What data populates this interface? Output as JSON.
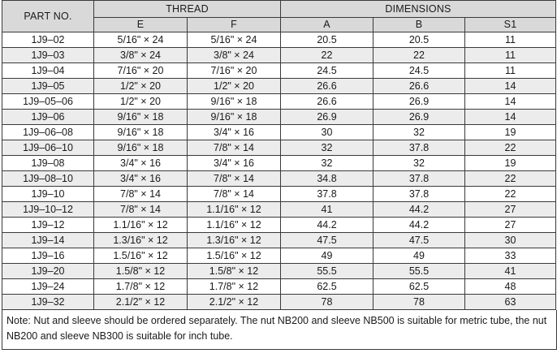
{
  "header": {
    "part_no": "PART NO.",
    "thread": "THREAD",
    "dimensions": "DIMENSIONS",
    "sub": [
      "E",
      "F",
      "A",
      "B",
      "S1"
    ]
  },
  "rows": [
    [
      "1J9–02",
      "5/16\" × 24",
      "5/16\" × 24",
      "20.5",
      "20.5",
      "11"
    ],
    [
      "1J9–03",
      "3/8\" × 24",
      "3/8\" × 24",
      "22",
      "22",
      "11"
    ],
    [
      "1J9–04",
      "7/16\" × 20",
      "7/16\" × 20",
      "24.5",
      "24.5",
      "11"
    ],
    [
      "1J9–05",
      "1/2\" × 20",
      "1/2\" × 20",
      "26.6",
      "26.6",
      "14"
    ],
    [
      "1J9–05–06",
      "1/2\" × 20",
      "9/16\" × 18",
      "26.6",
      "26.9",
      "14"
    ],
    [
      "1J9–06",
      "9/16\" × 18",
      "9/16\" × 18",
      "26.9",
      "26.9",
      "14"
    ],
    [
      "1J9–06–08",
      "9/16\" × 18",
      "3/4\" × 16",
      "30",
      "32",
      "19"
    ],
    [
      "1J9–06–10",
      "9/16\" × 18",
      "7/8\" × 14",
      "32",
      "37.8",
      "22"
    ],
    [
      "1J9–08",
      "3/4\" × 16",
      "3/4\" × 16",
      "32",
      "32",
      "19"
    ],
    [
      "1J9–08–10",
      "3/4\" × 16",
      "7/8\" × 14",
      "34.8",
      "37.8",
      "22"
    ],
    [
      "1J9–10",
      "7/8\" × 14",
      "7/8\" × 14",
      "37.8",
      "37.8",
      "22"
    ],
    [
      "1J9–10–12",
      "7/8\" × 14",
      "1.1/16\" × 12",
      "41",
      "44.2",
      "27"
    ],
    [
      "1J9–12",
      "1.1/16\" × 12",
      "1.1/16\" × 12",
      "44.2",
      "44.2",
      "27"
    ],
    [
      "1J9–14",
      "1.3/16\" × 12",
      "1.3/16\" × 12",
      "47.5",
      "47.5",
      "30"
    ],
    [
      "1J9–16",
      "1.5/16\" × 12",
      "1.5/16\" × 12",
      "49",
      "49",
      "33"
    ],
    [
      "1J9–20",
      "1.5/8\" × 12",
      "1.5/8\" × 12",
      "55.5",
      "55.5",
      "41"
    ],
    [
      "1J9–24",
      "1.7/8\" × 12",
      "1.7/8\" × 12",
      "62.5",
      "62.5",
      "48"
    ],
    [
      "1J9–32",
      "2.1/2\" × 12",
      "2.1/2\" × 12",
      "78",
      "78",
      "63"
    ]
  ],
  "note": "Note: Nut and sleeve should be ordered separately. The nut NB200 and sleeve NB500 is suitable for metric tube, the nut NB200 and sleeve NB300 is suitable for inch tube."
}
